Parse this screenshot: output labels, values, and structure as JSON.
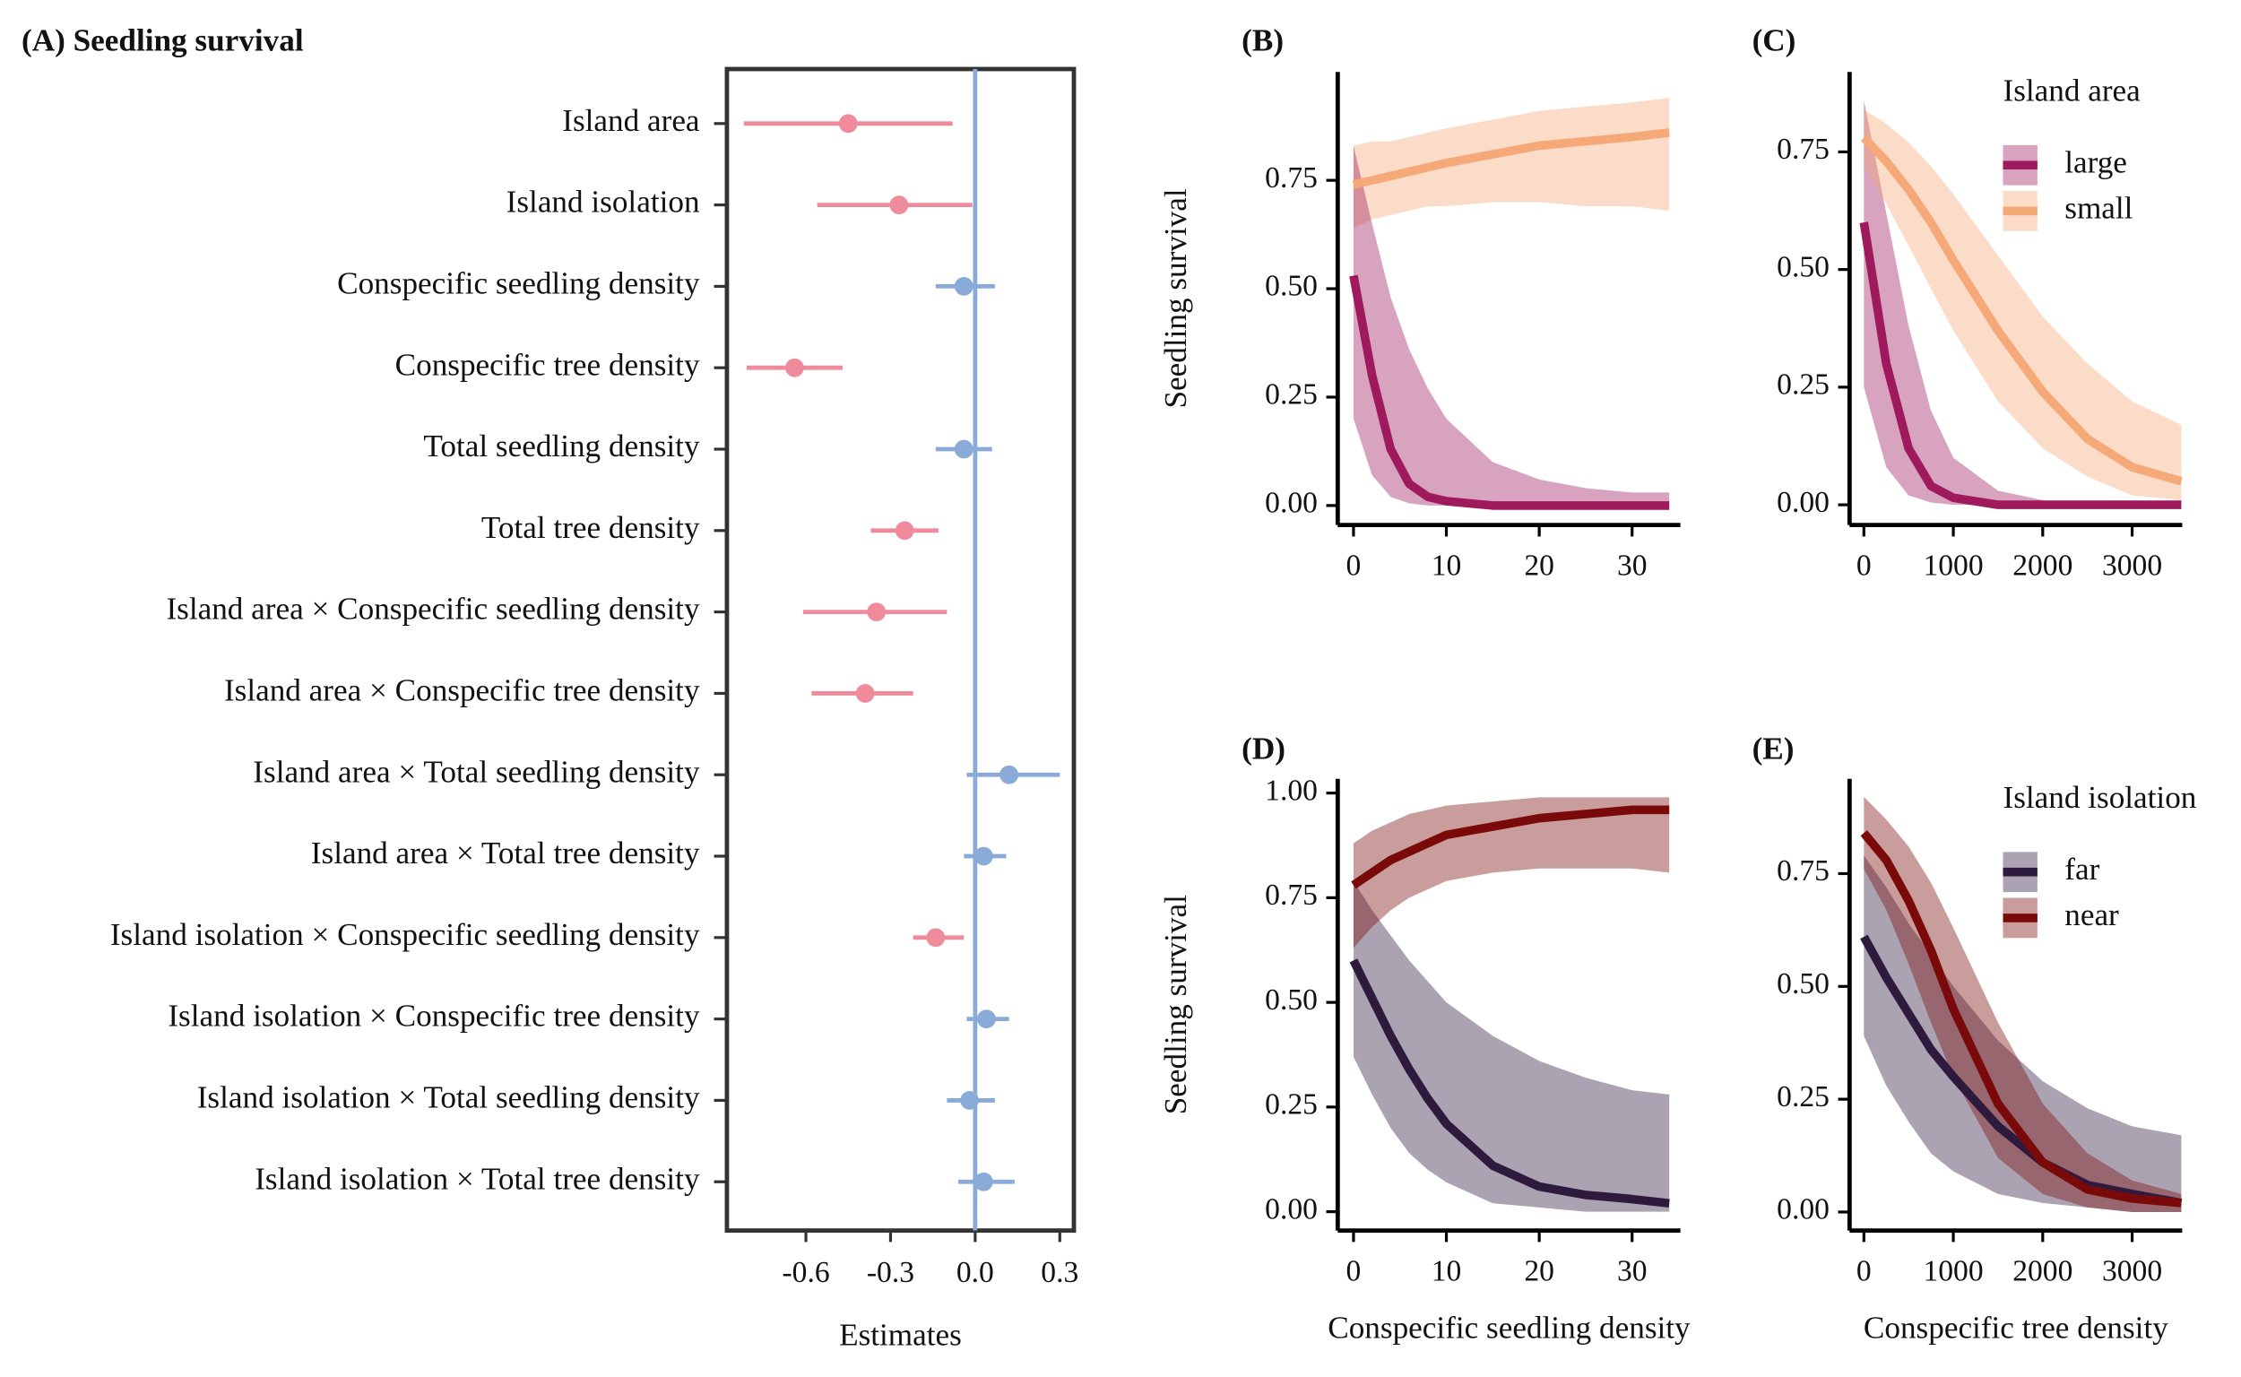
{
  "chart_data": [
    {
      "type": "forest",
      "title": "(A) Seedling survival",
      "xlabel": "Estimates",
      "categories": [
        "Island area",
        "Island isolation",
        "Conspecific seedling density",
        "Conspecific tree density",
        "Total seedling density",
        "Total tree density",
        "Island area × Conspecific seedling density",
        "Island area × Conspecific tree density",
        "Island area × Total seedling density",
        "Island area × Total tree density",
        "Island isolation × Conspecific seedling density",
        "Island isolation × Conspecific tree density",
        "Island isolation × Total seedling density",
        "Island isolation × Total tree density"
      ],
      "values": [
        -0.45,
        -0.27,
        -0.04,
        -0.64,
        -0.04,
        -0.25,
        -0.35,
        -0.39,
        0.12,
        0.03,
        -0.14,
        0.04,
        -0.02,
        0.03
      ],
      "lower": [
        -0.82,
        -0.56,
        -0.14,
        -0.81,
        -0.14,
        -0.37,
        -0.61,
        -0.58,
        -0.03,
        -0.04,
        -0.22,
        -0.03,
        -0.1,
        -0.06
      ],
      "upper": [
        -0.08,
        -0.01,
        0.07,
        -0.47,
        0.06,
        -0.13,
        -0.1,
        -0.22,
        0.3,
        0.11,
        -0.04,
        0.12,
        0.07,
        0.14
      ],
      "colors": [
        "#f08b9b",
        "#f08b9b",
        "#8aaad8",
        "#f08b9b",
        "#8aaad8",
        "#f08b9b",
        "#f08b9b",
        "#f08b9b",
        "#8aaad8",
        "#8aaad8",
        "#f08b9b",
        "#8aaad8",
        "#8aaad8",
        "#8aaad8"
      ],
      "reference_line": 0,
      "reference_color": "#8aaad8",
      "xlim": [
        -0.88,
        0.35
      ],
      "xticks": [
        -0.6,
        -0.3,
        {
          "value": 0,
          "label": "0.0"
        },
        0.3
      ]
    },
    {
      "type": "line",
      "title": "(B)",
      "ylabel": "Seedling survival",
      "x": [
        0,
        2,
        4,
        6,
        8,
        10,
        15,
        20,
        25,
        30,
        34
      ],
      "series": [
        {
          "color": "#f5a878",
          "values": [
            0.74,
            0.75,
            0.76,
            0.77,
            0.78,
            0.79,
            0.81,
            0.83,
            0.84,
            0.85,
            0.86
          ],
          "lower": [
            0.64,
            0.66,
            0.67,
            0.68,
            0.69,
            0.69,
            0.7,
            0.7,
            0.69,
            0.69,
            0.68
          ],
          "upper": [
            0.83,
            0.84,
            0.84,
            0.85,
            0.86,
            0.87,
            0.89,
            0.91,
            0.92,
            0.93,
            0.94
          ]
        },
        {
          "color": "#9e1a5c",
          "values": [
            0.53,
            0.3,
            0.13,
            0.05,
            0.02,
            0.01,
            0,
            0,
            0,
            0,
            0
          ],
          "lower": [
            0.2,
            0.07,
            0.02,
            0.005,
            0,
            0,
            0,
            0,
            0,
            0,
            0
          ],
          "upper": [
            0.83,
            0.65,
            0.48,
            0.36,
            0.27,
            0.2,
            0.1,
            0.06,
            0.04,
            0.03,
            0.03
          ]
        }
      ],
      "xlim": [
        -1.7,
        35.2
      ],
      "xticks": [
        0,
        10,
        20,
        30
      ],
      "ylim": [
        -0.045,
        1.0
      ],
      "yticks": [
        {
          "value": 0,
          "label": "0.00"
        },
        {
          "value": 0.25,
          "label": "0.25"
        },
        {
          "value": 0.5,
          "label": "0.50"
        },
        {
          "value": 0.75,
          "label": "0.75"
        }
      ]
    },
    {
      "type": "line",
      "title": "(C)",
      "legend_title": "Island area",
      "x": [
        0,
        250,
        500,
        750,
        1000,
        1500,
        2000,
        2500,
        3000,
        3550
      ],
      "series": [
        {
          "name": "large",
          "color": "#9e1a5c",
          "values": [
            0.6,
            0.3,
            0.12,
            0.04,
            0.015,
            0,
            0,
            0,
            0,
            0
          ],
          "lower": [
            0.25,
            0.08,
            0.02,
            0.005,
            0,
            0,
            0,
            0,
            0,
            0
          ],
          "upper": [
            0.86,
            0.62,
            0.38,
            0.2,
            0.1,
            0.03,
            0.01,
            0,
            0,
            0
          ]
        },
        {
          "name": "small",
          "color": "#f5a878",
          "values": [
            0.78,
            0.73,
            0.67,
            0.6,
            0.52,
            0.37,
            0.24,
            0.14,
            0.08,
            0.05
          ],
          "lower": [
            0.72,
            0.64,
            0.55,
            0.46,
            0.37,
            0.22,
            0.12,
            0.06,
            0.02,
            0.01
          ],
          "upper": [
            0.84,
            0.81,
            0.77,
            0.72,
            0.66,
            0.53,
            0.4,
            0.3,
            0.22,
            0.17
          ]
        }
      ],
      "xlim": [
        -160,
        3560
      ],
      "xticks": [
        0,
        1000,
        2000,
        3000
      ],
      "ylim": [
        -0.043,
        0.92
      ],
      "yticks": [
        {
          "value": 0,
          "label": "0.00"
        },
        {
          "value": 0.25,
          "label": "0.25"
        },
        {
          "value": 0.5,
          "label": "0.50"
        },
        {
          "value": 0.75,
          "label": "0.75"
        }
      ]
    },
    {
      "type": "line",
      "title": "(D)",
      "ylabel": "Seedling survival",
      "xlabel": "Conspecific seedling density",
      "x": [
        0,
        2,
        4,
        6,
        8,
        10,
        15,
        20,
        25,
        30,
        34
      ],
      "series": [
        {
          "color": "#2d1a3d",
          "values": [
            0.6,
            0.51,
            0.42,
            0.34,
            0.27,
            0.21,
            0.11,
            0.06,
            0.04,
            0.03,
            0.02
          ],
          "lower": [
            0.37,
            0.28,
            0.2,
            0.14,
            0.1,
            0.07,
            0.02,
            0.01,
            0,
            0,
            0
          ],
          "upper": [
            0.79,
            0.72,
            0.66,
            0.6,
            0.55,
            0.5,
            0.42,
            0.36,
            0.32,
            0.29,
            0.28
          ]
        },
        {
          "color": "#7a0a0a",
          "values": [
            0.78,
            0.81,
            0.84,
            0.86,
            0.88,
            0.9,
            0.92,
            0.94,
            0.95,
            0.96,
            0.96
          ],
          "lower": [
            0.63,
            0.68,
            0.72,
            0.75,
            0.77,
            0.79,
            0.81,
            0.82,
            0.82,
            0.82,
            0.81
          ],
          "upper": [
            0.88,
            0.91,
            0.93,
            0.95,
            0.96,
            0.97,
            0.98,
            0.99,
            0.99,
            0.99,
            0.99
          ]
        }
      ],
      "xlim": [
        -1.7,
        35.2
      ],
      "xticks": [
        0,
        10,
        20,
        30
      ],
      "ylim": [
        -0.045,
        1.034
      ],
      "yticks": [
        {
          "value": 0,
          "label": "0.00"
        },
        {
          "value": 0.25,
          "label": "0.25"
        },
        {
          "value": 0.5,
          "label": "0.50"
        },
        {
          "value": 0.75,
          "label": "0.75"
        },
        {
          "value": 1,
          "label": "1.00"
        }
      ]
    },
    {
      "type": "line",
      "title": "(E)",
      "legend_title": "Island isolation",
      "xlabel": "Conspecific tree density",
      "x": [
        0,
        250,
        500,
        750,
        1000,
        1500,
        2000,
        2500,
        3000,
        3550
      ],
      "series": [
        {
          "name": "far",
          "color": "#2d1a3d",
          "values": [
            0.61,
            0.52,
            0.44,
            0.36,
            0.3,
            0.19,
            0.11,
            0.06,
            0.04,
            0.02
          ],
          "lower": [
            0.39,
            0.28,
            0.2,
            0.13,
            0.09,
            0.04,
            0.02,
            0.01,
            0,
            0
          ],
          "upper": [
            0.79,
            0.72,
            0.64,
            0.57,
            0.5,
            0.38,
            0.29,
            0.23,
            0.19,
            0.17
          ]
        },
        {
          "name": "near",
          "color": "#7a0a0a",
          "values": [
            0.84,
            0.78,
            0.69,
            0.58,
            0.45,
            0.24,
            0.11,
            0.05,
            0.03,
            0.02
          ],
          "lower": [
            0.76,
            0.67,
            0.55,
            0.42,
            0.3,
            0.12,
            0.04,
            0.01,
            0,
            0
          ],
          "upper": [
            0.92,
            0.87,
            0.81,
            0.73,
            0.63,
            0.42,
            0.24,
            0.13,
            0.07,
            0.04
          ]
        }
      ],
      "xlim": [
        -160,
        3560
      ],
      "xticks": [
        0,
        1000,
        2000,
        3000
      ],
      "ylim": [
        -0.041,
        0.96
      ],
      "yticks": [
        {
          "value": 0,
          "label": "0.00"
        },
        {
          "value": 0.25,
          "label": "0.25"
        },
        {
          "value": 0.5,
          "label": "0.50"
        },
        {
          "value": 0.75,
          "label": "0.75"
        }
      ]
    }
  ]
}
